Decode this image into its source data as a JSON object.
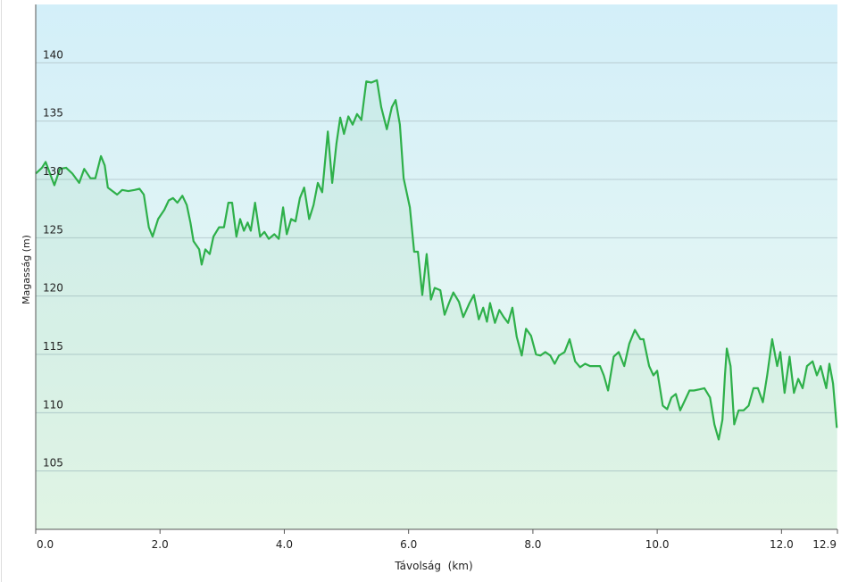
{
  "chart_data": {
    "type": "line",
    "x_label": "Távolság  (km)",
    "y_label": "Magasság (m)",
    "xlim": [
      0,
      12.9
    ],
    "ylim": [
      100,
      145
    ],
    "xticks": [
      {
        "value": 0,
        "label": "0.0"
      },
      {
        "value": 2,
        "label": "2.0"
      },
      {
        "value": 4,
        "label": "4.0"
      },
      {
        "value": 6,
        "label": "6.0"
      },
      {
        "value": 8,
        "label": "8.0"
      },
      {
        "value": 10,
        "label": "10.0"
      },
      {
        "value": 12,
        "label": "12.0"
      },
      {
        "value": 12.9,
        "label": "12.9"
      }
    ],
    "yticks": [
      105,
      110,
      115,
      120,
      125,
      130,
      135,
      140
    ],
    "grid": true,
    "series": [
      {
        "color": "#2eb04a",
        "x": [
          0.0,
          0.1,
          0.16,
          0.23,
          0.3,
          0.39,
          0.49,
          0.59,
          0.7,
          0.78,
          0.88,
          0.96,
          1.05,
          1.11,
          1.16,
          1.31,
          1.39,
          1.49,
          1.59,
          1.67,
          1.74,
          1.82,
          1.88,
          1.97,
          2.07,
          2.14,
          2.21,
          2.28,
          2.36,
          2.43,
          2.49,
          2.54,
          2.63,
          2.67,
          2.73,
          2.8,
          2.86,
          2.95,
          3.03,
          3.1,
          3.16,
          3.23,
          3.29,
          3.35,
          3.41,
          3.46,
          3.53,
          3.61,
          3.68,
          3.75,
          3.84,
          3.91,
          3.98,
          4.04,
          4.11,
          4.18,
          4.25,
          4.32,
          4.4,
          4.47,
          4.54,
          4.61,
          4.7,
          4.77,
          4.84,
          4.9,
          4.96,
          5.03,
          5.1,
          5.17,
          5.24,
          5.32,
          5.4,
          5.49,
          5.56,
          5.65,
          5.73,
          5.79,
          5.86,
          5.92,
          6.02,
          6.09,
          6.15,
          6.22,
          6.29,
          6.36,
          6.42,
          6.51,
          6.58,
          6.65,
          6.72,
          6.81,
          6.88,
          6.98,
          7.05,
          7.13,
          7.2,
          7.26,
          7.31,
          7.39,
          7.46,
          7.53,
          7.6,
          7.67,
          7.74,
          7.82,
          7.89,
          7.97,
          8.05,
          8.12,
          8.2,
          8.28,
          8.35,
          8.42,
          8.51,
          8.59,
          8.68,
          8.76,
          8.84,
          8.92,
          8.99,
          9.08,
          9.14,
          9.21,
          9.3,
          9.38,
          9.47,
          9.55,
          9.64,
          9.73,
          9.78,
          9.87,
          9.94,
          10.0,
          10.09,
          10.16,
          10.23,
          10.3,
          10.37,
          10.45,
          10.52,
          10.59,
          10.68,
          10.76,
          10.85,
          10.92,
          10.99,
          11.05,
          11.09,
          11.12,
          11.18,
          11.24,
          11.31,
          11.39,
          11.47,
          11.55,
          11.62,
          11.7,
          11.77,
          11.85,
          11.93,
          11.98,
          12.05,
          12.13,
          12.2,
          12.27,
          12.34,
          12.41,
          12.5,
          12.57,
          12.63,
          12.72,
          12.77,
          12.83,
          12.89
        ],
        "values": [
          130.5,
          131.0,
          131.5,
          130.5,
          129.5,
          130.9,
          131.0,
          130.5,
          129.7,
          130.9,
          130.1,
          130.1,
          132.0,
          131.2,
          129.3,
          128.7,
          129.1,
          129.0,
          129.1,
          129.2,
          128.7,
          125.9,
          125.1,
          126.6,
          127.4,
          128.2,
          128.4,
          128.0,
          128.6,
          127.8,
          126.3,
          124.7,
          124.0,
          122.7,
          124.0,
          123.6,
          125.1,
          125.9,
          125.9,
          128.0,
          128.0,
          125.1,
          126.6,
          125.6,
          126.3,
          125.6,
          128.0,
          125.1,
          125.5,
          124.9,
          125.3,
          124.9,
          127.6,
          125.3,
          126.6,
          126.4,
          128.4,
          129.3,
          126.6,
          127.8,
          129.7,
          128.9,
          134.1,
          129.7,
          133.1,
          135.3,
          133.9,
          135.4,
          134.7,
          135.6,
          135.1,
          138.4,
          138.3,
          138.5,
          136.2,
          134.3,
          136.2,
          136.8,
          134.7,
          130.1,
          127.6,
          123.8,
          123.8,
          120.1,
          123.6,
          119.7,
          120.7,
          120.5,
          118.4,
          119.4,
          120.3,
          119.5,
          118.2,
          119.4,
          120.1,
          118.0,
          119.0,
          117.8,
          119.4,
          117.7,
          118.8,
          118.2,
          117.7,
          119.0,
          116.5,
          114.9,
          117.2,
          116.6,
          115.0,
          114.9,
          115.2,
          114.9,
          114.2,
          114.9,
          115.2,
          116.3,
          114.4,
          113.9,
          114.2,
          114.0,
          114.0,
          114.0,
          113.2,
          111.9,
          114.8,
          115.2,
          114.0,
          115.9,
          117.1,
          116.3,
          116.3,
          114.0,
          113.2,
          113.6,
          110.6,
          110.3,
          111.3,
          111.6,
          110.2,
          111.1,
          111.9,
          111.9,
          112.0,
          112.1,
          111.3,
          109.0,
          107.7,
          109.4,
          113.2,
          115.5,
          114.0,
          109.0,
          110.2,
          110.2,
          110.6,
          112.1,
          112.1,
          110.9,
          113.2,
          116.3,
          114.0,
          115.2,
          111.7,
          114.8,
          111.7,
          112.9,
          112.1,
          114.0,
          114.4,
          113.2,
          114.0,
          112.1,
          114.2,
          112.5,
          108.7
        ]
      }
    ]
  }
}
